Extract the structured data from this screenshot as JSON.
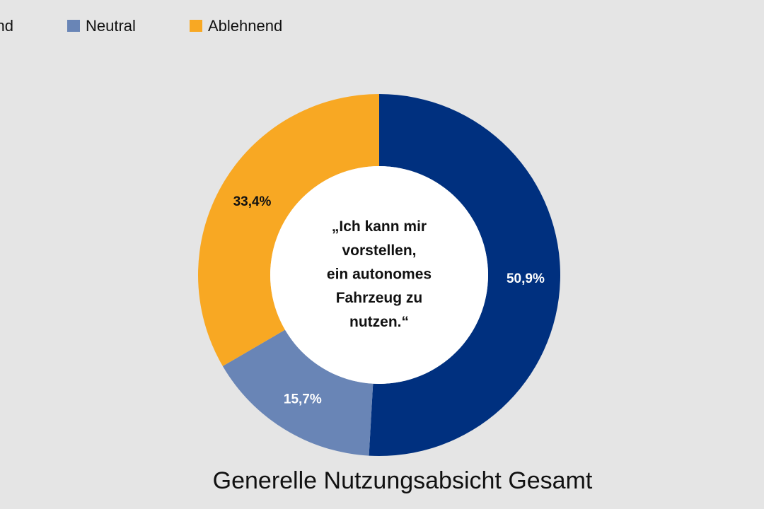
{
  "chart_data": {
    "type": "donut",
    "title": "Generelle Nutzungsabsicht Gesamt",
    "center_text": [
      "„Ich kann mir",
      "vorstellen,",
      "ein autonomes",
      "Fahrzeug zu",
      "nutzen.“"
    ],
    "categories": [
      "Zustimmend",
      "Neutral",
      "Ablehnend"
    ],
    "values": [
      50.9,
      15.7,
      33.4
    ],
    "value_labels": [
      "50,9%",
      "15,7%",
      "33,4%"
    ],
    "colors": [
      "#00307f",
      "#6985b6",
      "#f8a823"
    ],
    "label_colors": [
      "#ffffff",
      "#ffffff",
      "#111111"
    ],
    "legend": "top"
  }
}
